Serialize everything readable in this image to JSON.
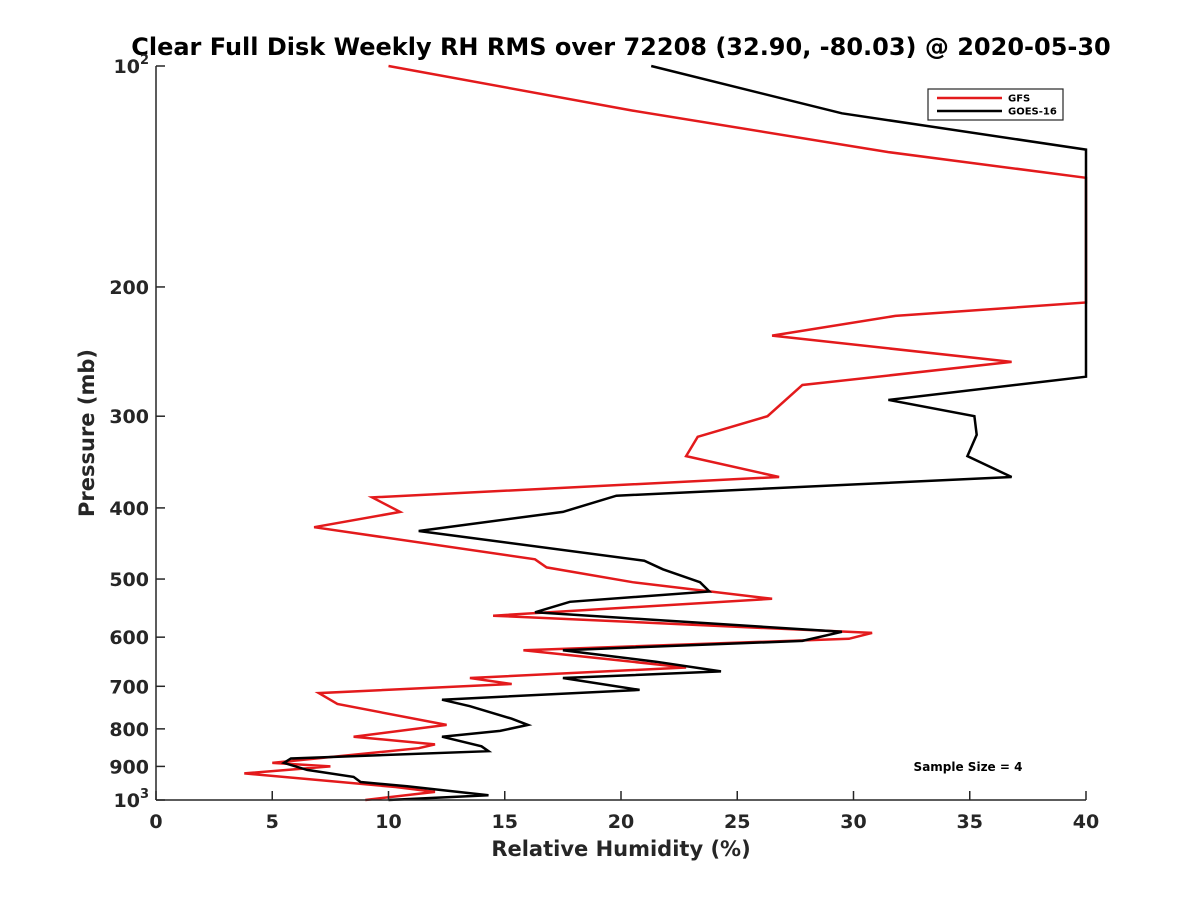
{
  "chart_data": {
    "type": "line",
    "title": "Clear Full Disk Weekly RH RMS over 72208 (32.90, -80.03) @ 2020-05-30",
    "xlabel": "Relative Humidity (%)",
    "ylabel": "Pressure (mb)",
    "xlim": [
      0,
      40
    ],
    "ylim": [
      100,
      1000
    ],
    "y_scale": "log",
    "y_reversed": true,
    "x_ticks": [
      "0",
      "5",
      "10",
      "15",
      "20",
      "25",
      "30",
      "35",
      "40"
    ],
    "y_ticks": [
      {
        "value": 100,
        "label": "10",
        "exp": "2"
      },
      {
        "value": 200,
        "label": "200",
        "exp": ""
      },
      {
        "value": 300,
        "label": "300",
        "exp": ""
      },
      {
        "value": 400,
        "label": "400",
        "exp": ""
      },
      {
        "value": 500,
        "label": "500",
        "exp": ""
      },
      {
        "value": 600,
        "label": "600",
        "exp": ""
      },
      {
        "value": 700,
        "label": "700",
        "exp": ""
      },
      {
        "value": 800,
        "label": "800",
        "exp": ""
      },
      {
        "value": 900,
        "label": "900",
        "exp": ""
      },
      {
        "value": 1000,
        "label": "10",
        "exp": "3"
      }
    ],
    "legend_position": "top-right",
    "annotation": "Sample Size = 4",
    "grid": false,
    "series": [
      {
        "name": "GFS",
        "color": "#e31a1c",
        "points": [
          [
            10.0,
            100
          ],
          [
            20.5,
            115
          ],
          [
            31.5,
            131
          ],
          [
            40.0,
            142
          ],
          [
            40.0,
            210
          ],
          [
            31.8,
            219
          ],
          [
            26.5,
            233
          ],
          [
            36.8,
            253
          ],
          [
            27.8,
            272
          ],
          [
            26.3,
            300
          ],
          [
            23.3,
            320
          ],
          [
            22.8,
            340
          ],
          [
            26.8,
            363
          ],
          [
            9.3,
            387
          ],
          [
            10.5,
            405
          ],
          [
            6.8,
            425
          ],
          [
            16.3,
            470
          ],
          [
            16.8,
            482
          ],
          [
            20.5,
            505
          ],
          [
            26.5,
            532
          ],
          [
            14.5,
            561
          ],
          [
            30.8,
            592
          ],
          [
            29.8,
            603
          ],
          [
            15.8,
            625
          ],
          [
            22.8,
            660
          ],
          [
            13.5,
            682
          ],
          [
            15.3,
            695
          ],
          [
            7.0,
            715
          ],
          [
            7.8,
            740
          ],
          [
            12.5,
            790
          ],
          [
            8.5,
            820
          ],
          [
            12.0,
            840
          ],
          [
            11.3,
            850
          ],
          [
            5.0,
            890
          ],
          [
            7.5,
            900
          ],
          [
            3.8,
            920
          ],
          [
            10.3,
            960
          ],
          [
            12.0,
            975
          ],
          [
            9.0,
            1000
          ]
        ]
      },
      {
        "name": "GOES-16",
        "color": "#000000",
        "points": [
          [
            21.3,
            100
          ],
          [
            29.5,
            116
          ],
          [
            40.0,
            130
          ],
          [
            40.0,
            265
          ],
          [
            31.5,
            285
          ],
          [
            35.2,
            300
          ],
          [
            35.3,
            318
          ],
          [
            34.9,
            340
          ],
          [
            36.8,
            363
          ],
          [
            19.8,
            385
          ],
          [
            17.5,
            405
          ],
          [
            11.3,
            430
          ],
          [
            21.0,
            472
          ],
          [
            21.8,
            485
          ],
          [
            23.4,
            505
          ],
          [
            23.8,
            520
          ],
          [
            17.8,
            537
          ],
          [
            16.3,
            555
          ],
          [
            29.5,
            590
          ],
          [
            27.8,
            607
          ],
          [
            17.5,
            625
          ],
          [
            21.5,
            648
          ],
          [
            24.3,
            668
          ],
          [
            17.5,
            682
          ],
          [
            20.8,
            708
          ],
          [
            12.3,
            730
          ],
          [
            13.5,
            745
          ],
          [
            15.3,
            775
          ],
          [
            16.0,
            790
          ],
          [
            14.8,
            805
          ],
          [
            12.3,
            820
          ],
          [
            14.0,
            845
          ],
          [
            14.3,
            858
          ],
          [
            5.8,
            878
          ],
          [
            5.5,
            890
          ],
          [
            6.5,
            910
          ],
          [
            8.5,
            930
          ],
          [
            8.8,
            945
          ],
          [
            10.8,
            958
          ],
          [
            14.3,
            985
          ],
          [
            10.0,
            1000
          ]
        ]
      }
    ]
  }
}
